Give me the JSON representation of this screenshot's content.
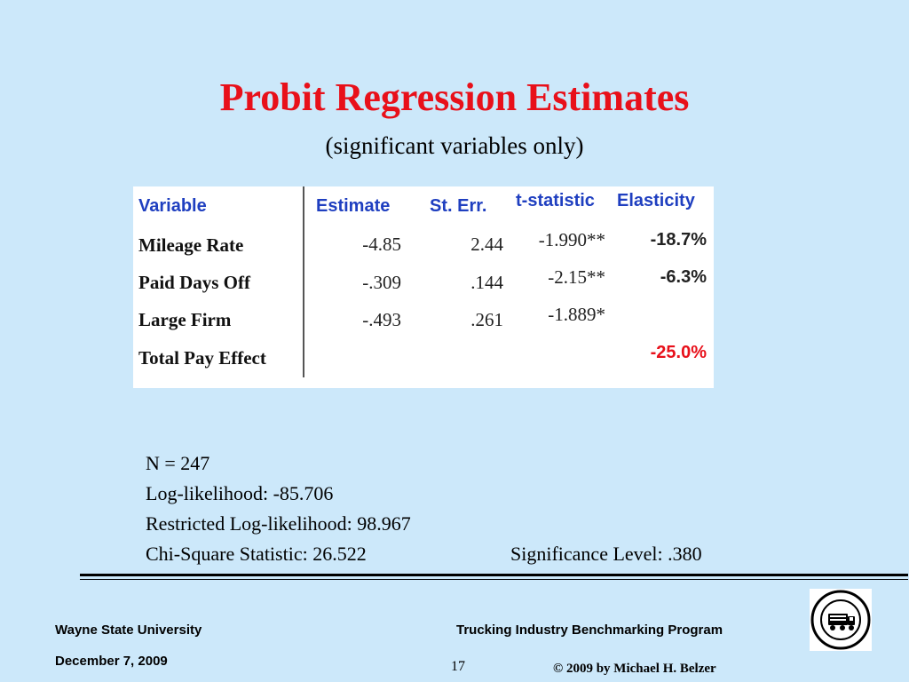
{
  "slide": {
    "title": "Probit Regression Estimates",
    "subtitle": "(significant variables only)"
  },
  "table": {
    "headers": {
      "variable": "Variable",
      "estimate": "Estimate",
      "st_err": "St. Err.",
      "t_statistic": "t-statistic",
      "elasticity": "Elasticity"
    },
    "rows": [
      {
        "variable": "Mileage Rate",
        "estimate": "-4.85",
        "st_err": "2.44",
        "t_statistic": "-1.990**",
        "elasticity": "-18.7%"
      },
      {
        "variable": "Paid Days Off",
        "estimate": "-.309",
        "st_err": ".144",
        "t_statistic": "-2.15**",
        "elasticity": "-6.3%"
      },
      {
        "variable": "Large Firm",
        "estimate": "-.493",
        "st_err": ".261",
        "t_statistic": "-1.889*",
        "elasticity": ""
      },
      {
        "variable": "Total Pay Effect",
        "estimate": "",
        "st_err": "",
        "t_statistic": "",
        "elasticity": "-25.0%"
      }
    ],
    "colors": {
      "header": "#1f3fc0",
      "highlight": "#e8101a"
    }
  },
  "stats": {
    "n": "N = 247",
    "log_likelihood": "Log-likelihood: -85.706",
    "restricted_log_likelihood": "Restricted Log-likelihood: 98.967",
    "chi_square": "Chi-Square Statistic: 26.522",
    "significance": "Significance Level: .380"
  },
  "footer": {
    "university": "Wayne State University",
    "date": "December 7, 2009",
    "program": "Trucking Industry Benchmarking Program",
    "page_number": "17",
    "copyright": "© 2009 by Michael H. Belzer",
    "logo_icon": "trucking-industry-program-logo"
  }
}
